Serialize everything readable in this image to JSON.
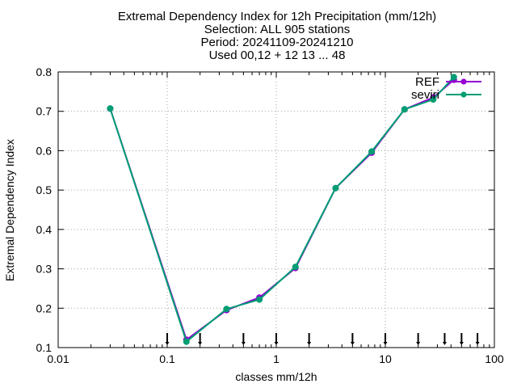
{
  "chart_data": {
    "type": "line",
    "title_lines": [
      "Extremal Dependency Index  for 12h Precipitation (mm/12h)",
      "Selection: ALL    905 stations",
      "Period: 20241109-20241210",
      "Used 00,12 + 12 13 ... 48"
    ],
    "xlabel": "classes mm/12h",
    "ylabel": "Extremal Dependency Index",
    "x_scale": "log",
    "xlim": [
      0.01,
      100
    ],
    "ylim": [
      0.1,
      0.8
    ],
    "x_ticks": [
      0.01,
      0.1,
      1,
      10,
      100
    ],
    "x_tick_labels": [
      "0.01",
      "0.1",
      "1",
      "10",
      "100"
    ],
    "y_ticks": [
      0.1,
      0.2,
      0.3,
      0.4,
      0.5,
      0.6,
      0.7,
      0.8
    ],
    "y_tick_labels": [
      "0.1",
      "0.2",
      "0.3",
      "0.4",
      "0.5",
      "0.6",
      "0.7",
      "0.8"
    ],
    "grid": true,
    "legend_position": "top-right",
    "x": [
      0.03,
      0.15,
      0.35,
      0.7,
      1.5,
      3.5,
      7.5,
      15,
      27.5,
      42.5
    ],
    "series": [
      {
        "name": "REF",
        "color": "#9400d3",
        "marker": "circle",
        "values": [
          0.707,
          0.12,
          0.195,
          0.227,
          0.302,
          0.505,
          0.595,
          0.705,
          0.735,
          0.78
        ]
      },
      {
        "name": "seviri",
        "color": "#009e73",
        "marker": "circle",
        "values": [
          0.707,
          0.115,
          0.198,
          0.222,
          0.305,
          0.505,
          0.598,
          0.705,
          0.73,
          0.787
        ]
      }
    ],
    "class_thresholds": [
      0.1,
      0.2,
      0.5,
      1,
      2,
      5,
      10,
      20,
      35,
      50,
      70
    ],
    "threshold_marker_color": "#000000"
  }
}
